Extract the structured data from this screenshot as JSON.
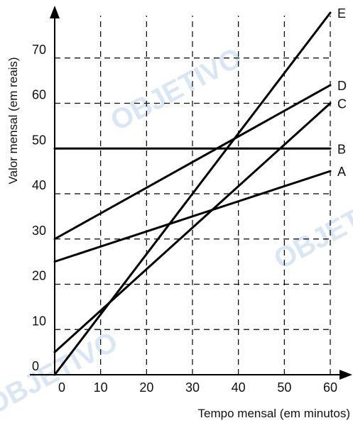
{
  "chart_data": {
    "type": "line",
    "title": "",
    "xlabel": "Tempo mensal (em minutos)",
    "ylabel": "Valor mensal (em reais)",
    "xlim": [
      0,
      60
    ],
    "ylim": [
      0,
      80
    ],
    "x_ticks": [
      "0",
      "10",
      "20",
      "30",
      "40",
      "50",
      "60"
    ],
    "y_ticks": [
      "0",
      "10",
      "20",
      "30",
      "40",
      "50",
      "60",
      "70"
    ],
    "grid": true,
    "series": [
      {
        "name": "A",
        "x": [
          0,
          60
        ],
        "values": [
          25,
          45
        ]
      },
      {
        "name": "B",
        "x": [
          0,
          60
        ],
        "values": [
          50,
          50
        ]
      },
      {
        "name": "C",
        "x": [
          0,
          60
        ],
        "values": [
          5,
          60
        ]
      },
      {
        "name": "D",
        "x": [
          0,
          60
        ],
        "values": [
          30,
          64
        ]
      },
      {
        "name": "E",
        "x": [
          0,
          60
        ],
        "values": [
          0,
          80
        ]
      }
    ]
  },
  "watermark": {
    "text": "OBJETIVO"
  }
}
